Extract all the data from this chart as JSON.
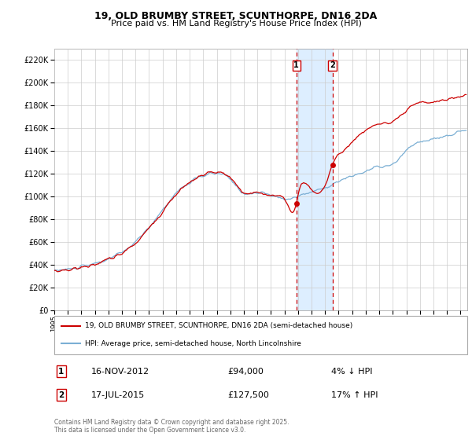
{
  "title_line1": "19, OLD BRUMBY STREET, SCUNTHORPE, DN16 2DA",
  "title_line2": "Price paid vs. HM Land Registry's House Price Index (HPI)",
  "ylim": [
    0,
    230000
  ],
  "yticks": [
    0,
    20000,
    40000,
    60000,
    80000,
    100000,
    120000,
    140000,
    160000,
    180000,
    200000,
    220000
  ],
  "xlim_start": 1995.0,
  "xlim_end": 2025.5,
  "sale1_date_x": 2012.88,
  "sale1_price": 94000,
  "sale1_label": "1",
  "sale1_date_str": "16-NOV-2012",
  "sale1_price_str": "£94,000",
  "sale1_hpi_str": "4% ↓ HPI",
  "sale2_date_x": 2015.54,
  "sale2_price": 127500,
  "sale2_label": "2",
  "sale2_date_str": "17-JUL-2015",
  "sale2_price_str": "£127,500",
  "sale2_hpi_str": "17% ↑ HPI",
  "line_red_color": "#cc0000",
  "line_blue_color": "#7bafd4",
  "shade_color": "#ddeeff",
  "vline_color": "#cc0000",
  "grid_color": "#cccccc",
  "legend_line1": "19, OLD BRUMBY STREET, SCUNTHORPE, DN16 2DA (semi-detached house)",
  "legend_line2": "HPI: Average price, semi-detached house, North Lincolnshire",
  "footnote": "Contains HM Land Registry data © Crown copyright and database right 2025.\nThis data is licensed under the Open Government Licence v3.0."
}
